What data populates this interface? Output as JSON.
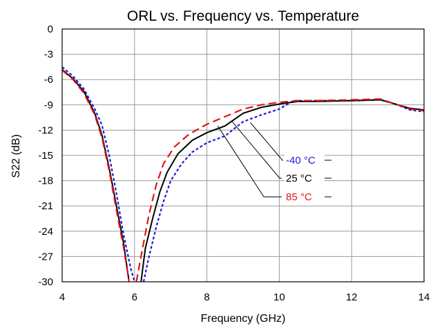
{
  "chart_data": {
    "type": "line",
    "title": "ORL vs. Frequency vs. Temperature",
    "xlabel": "Frequency (GHz)",
    "ylabel": "S22 (dB)",
    "xlim": [
      4,
      14
    ],
    "ylim": [
      -30,
      0
    ],
    "xticks": [
      4,
      6,
      8,
      10,
      12,
      14
    ],
    "yticks": [
      0,
      -3,
      -6,
      -9,
      -12,
      -15,
      -18,
      -21,
      -24,
      -27,
      -30
    ],
    "grid": true,
    "series": [
      {
        "name": "-40 °C",
        "color": "#1a1adb",
        "dash": "dotted",
        "points": [
          [
            4.0,
            -4.5
          ],
          [
            4.3,
            -5.6
          ],
          [
            4.6,
            -7.1
          ],
          [
            4.9,
            -9.5
          ],
          [
            5.1,
            -11.4
          ],
          [
            5.3,
            -15.0
          ],
          [
            5.5,
            -19.5
          ],
          [
            5.7,
            -24.5
          ],
          [
            5.9,
            -28.5
          ],
          [
            6.0,
            -30.0
          ]
        ],
        "points2": [
          [
            6.25,
            -30.0
          ],
          [
            6.4,
            -27.0
          ],
          [
            6.6,
            -23.5
          ],
          [
            6.8,
            -20.5
          ],
          [
            7.0,
            -18.0
          ],
          [
            7.3,
            -16.0
          ],
          [
            7.6,
            -14.6
          ],
          [
            8.0,
            -13.5
          ],
          [
            8.5,
            -12.7
          ],
          [
            9.0,
            -11.0
          ],
          [
            9.5,
            -10.2
          ],
          [
            10.0,
            -9.5
          ],
          [
            10.4,
            -8.5
          ],
          [
            11.0,
            -8.5
          ],
          [
            12.0,
            -8.5
          ],
          [
            12.8,
            -8.4
          ],
          [
            13.2,
            -8.9
          ],
          [
            13.6,
            -9.6
          ],
          [
            14.0,
            -9.8
          ]
        ]
      },
      {
        "name": "25 °C",
        "color": "#000000",
        "dash": "solid",
        "points": [
          [
            4.0,
            -4.8
          ],
          [
            4.3,
            -5.9
          ],
          [
            4.6,
            -7.4
          ],
          [
            4.9,
            -10.0
          ],
          [
            5.1,
            -12.6
          ],
          [
            5.3,
            -16.5
          ],
          [
            5.5,
            -21.0
          ],
          [
            5.7,
            -25.5
          ],
          [
            5.85,
            -30.0
          ]
        ],
        "points2": [
          [
            6.18,
            -30.0
          ],
          [
            6.3,
            -26.0
          ],
          [
            6.5,
            -22.5
          ],
          [
            6.7,
            -19.3
          ],
          [
            6.9,
            -17.0
          ],
          [
            7.2,
            -14.8
          ],
          [
            7.6,
            -13.2
          ],
          [
            8.0,
            -12.3
          ],
          [
            8.5,
            -11.5
          ],
          [
            9.0,
            -10.0
          ],
          [
            9.5,
            -9.3
          ],
          [
            10.0,
            -8.9
          ],
          [
            10.5,
            -8.6
          ],
          [
            11.0,
            -8.6
          ],
          [
            12.0,
            -8.5
          ],
          [
            12.8,
            -8.4
          ],
          [
            13.2,
            -8.9
          ],
          [
            13.6,
            -9.4
          ],
          [
            14.0,
            -9.6
          ]
        ]
      },
      {
        "name": "85 °C",
        "color": "#e01515",
        "dash": "dashed",
        "points": [
          [
            4.0,
            -4.9
          ],
          [
            4.3,
            -6.0
          ],
          [
            4.6,
            -7.6
          ],
          [
            4.9,
            -10.2
          ],
          [
            5.1,
            -12.9
          ],
          [
            5.3,
            -16.8
          ],
          [
            5.5,
            -21.5
          ],
          [
            5.7,
            -26.0
          ],
          [
            5.85,
            -30.0
          ]
        ],
        "points2": [
          [
            6.05,
            -30.0
          ],
          [
            6.2,
            -26.5
          ],
          [
            6.4,
            -22.0
          ],
          [
            6.6,
            -18.5
          ],
          [
            6.8,
            -16.0
          ],
          [
            7.1,
            -14.0
          ],
          [
            7.5,
            -12.5
          ],
          [
            8.0,
            -11.3
          ],
          [
            8.5,
            -10.4
          ],
          [
            9.0,
            -9.5
          ],
          [
            9.5,
            -9.0
          ],
          [
            10.0,
            -8.7
          ],
          [
            10.5,
            -8.5
          ],
          [
            11.0,
            -8.5
          ],
          [
            12.0,
            -8.4
          ],
          [
            12.8,
            -8.3
          ],
          [
            13.2,
            -8.9
          ],
          [
            13.6,
            -9.5
          ],
          [
            14.0,
            -9.7
          ]
        ]
      }
    ],
    "annotations": [
      {
        "label": "-40 °C",
        "color": "#1a1adb",
        "x": 9.2,
        "y": -11.1
      },
      {
        "label": "25 °C",
        "color": "#000000",
        "x": 8.7,
        "y": -11.0
      },
      {
        "label": "85 °C",
        "color": "#e01515",
        "x": 8.3,
        "y": -11.5
      }
    ]
  }
}
